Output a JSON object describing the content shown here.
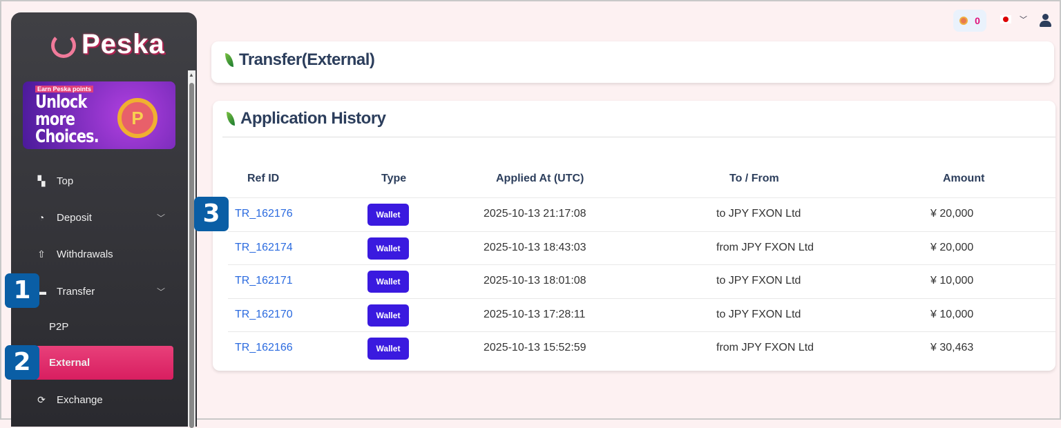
{
  "brand": {
    "name": "Peska",
    "accent": "#e0306e"
  },
  "banner": {
    "tag": "Earn Peska points",
    "headline": "Unlock more Choices.",
    "coin_letter": "P"
  },
  "sidebar": {
    "items": [
      {
        "label": "Top",
        "icon": "dashboard-icon"
      },
      {
        "label": "Deposit",
        "icon": "deposit-icon",
        "expandable": true
      },
      {
        "label": "Withdrawals",
        "icon": "upload-icon"
      },
      {
        "label": "Transfer",
        "icon": "transfer-icon",
        "expandable": true
      },
      {
        "label": "P2P",
        "sub": true
      },
      {
        "label": "External",
        "sub": true,
        "active": true
      },
      {
        "label": "Exchange",
        "icon": "exchange-icon"
      }
    ]
  },
  "topbar": {
    "points": "0",
    "language_flag": "Japan"
  },
  "page_title": "Transfer(External)",
  "history": {
    "title": "Application History",
    "columns": [
      "Ref ID",
      "Type",
      "Applied At (UTC)",
      "To / From",
      "Amount"
    ],
    "rows": [
      {
        "ref": "TR_162176",
        "type": "Wallet",
        "applied": "2025-10-13 21:17:08",
        "party": "to JPY FXON Ltd",
        "amount": "¥ 20,000"
      },
      {
        "ref": "TR_162174",
        "type": "Wallet",
        "applied": "2025-10-13 18:43:03",
        "party": "from JPY FXON Ltd",
        "amount": "¥ 20,000"
      },
      {
        "ref": "TR_162171",
        "type": "Wallet",
        "applied": "2025-10-13 18:01:08",
        "party": "to JPY FXON Ltd",
        "amount": "¥ 10,000"
      },
      {
        "ref": "TR_162170",
        "type": "Wallet",
        "applied": "2025-10-13 17:28:11",
        "party": "to JPY FXON Ltd",
        "amount": "¥ 10,000"
      },
      {
        "ref": "TR_162166",
        "type": "Wallet",
        "applied": "2025-10-13 15:52:59",
        "party": "from JPY FXON Ltd",
        "amount": "¥ 30,463"
      }
    ]
  },
  "callouts": [
    "1",
    "2",
    "3"
  ]
}
